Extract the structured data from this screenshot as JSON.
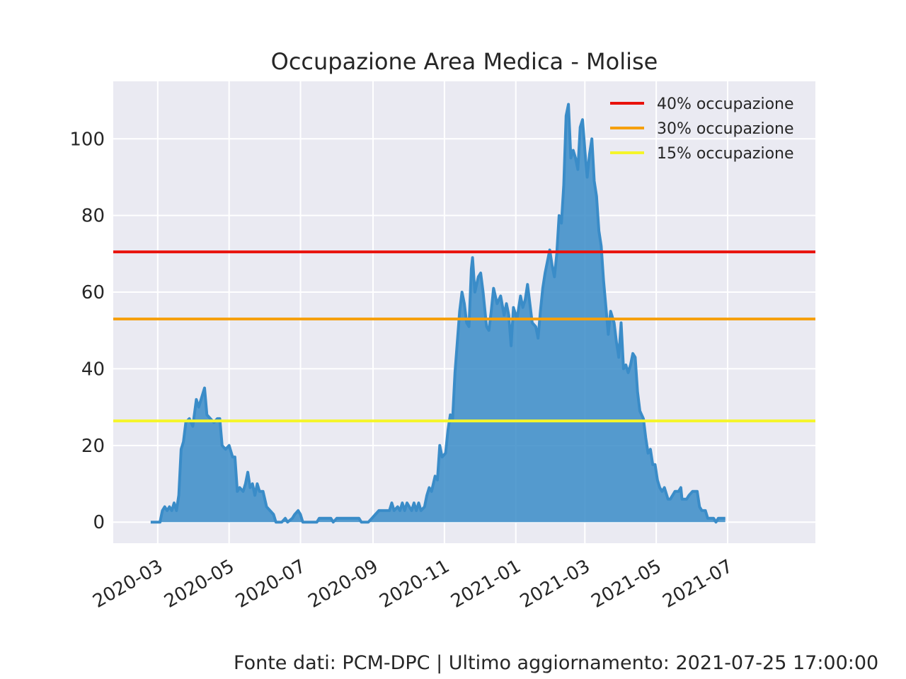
{
  "chart_data": {
    "type": "area",
    "title": "Occupazione Area Medica - Molise",
    "xlabel": "",
    "ylabel": "",
    "x_ticks": [
      "2020-03",
      "2020-05",
      "2020-07",
      "2020-09",
      "2020-11",
      "2021-01",
      "2021-03",
      "2021-05",
      "2021-07"
    ],
    "y_ticks": [
      0,
      20,
      40,
      60,
      80,
      100
    ],
    "xlim": [
      "2020-01-23",
      "2021-09-14"
    ],
    "ylim": [
      -5.5,
      115
    ],
    "grid": true,
    "legend_position": "top-right",
    "series": [
      {
        "color": "#3a8cc8",
        "fill": "#3a8cc8",
        "points": [
          [
            "2020-02-24",
            0
          ],
          [
            "2020-03-03",
            0
          ],
          [
            "2020-03-05",
            3
          ],
          [
            "2020-03-07",
            4
          ],
          [
            "2020-03-09",
            3
          ],
          [
            "2020-03-11",
            4
          ],
          [
            "2020-03-13",
            3
          ],
          [
            "2020-03-15",
            5
          ],
          [
            "2020-03-17",
            3
          ],
          [
            "2020-03-19",
            7
          ],
          [
            "2020-03-21",
            19
          ],
          [
            "2020-03-23",
            21
          ],
          [
            "2020-03-25",
            26
          ],
          [
            "2020-03-28",
            27
          ],
          [
            "2020-03-31",
            25
          ],
          [
            "2020-04-03",
            32
          ],
          [
            "2020-04-05",
            30
          ],
          [
            "2020-04-08",
            33
          ],
          [
            "2020-04-10",
            35
          ],
          [
            "2020-04-12",
            28
          ],
          [
            "2020-04-15",
            27
          ],
          [
            "2020-04-18",
            26
          ],
          [
            "2020-04-21",
            27
          ],
          [
            "2020-04-23",
            27
          ],
          [
            "2020-04-25",
            20
          ],
          [
            "2020-04-28",
            19
          ],
          [
            "2020-05-01",
            20
          ],
          [
            "2020-05-04",
            17
          ],
          [
            "2020-05-06",
            17
          ],
          [
            "2020-05-08",
            8
          ],
          [
            "2020-05-10",
            9
          ],
          [
            "2020-05-13",
            8
          ],
          [
            "2020-05-15",
            10
          ],
          [
            "2020-05-17",
            13
          ],
          [
            "2020-05-19",
            9
          ],
          [
            "2020-05-21",
            10
          ],
          [
            "2020-05-23",
            7
          ],
          [
            "2020-05-25",
            10
          ],
          [
            "2020-05-27",
            8
          ],
          [
            "2020-05-30",
            8
          ],
          [
            "2020-06-02",
            4
          ],
          [
            "2020-06-05",
            3
          ],
          [
            "2020-06-08",
            2
          ],
          [
            "2020-06-10",
            0
          ],
          [
            "2020-06-15",
            0
          ],
          [
            "2020-06-18",
            1
          ],
          [
            "2020-06-20",
            0
          ],
          [
            "2020-06-24",
            1
          ],
          [
            "2020-06-26",
            2
          ],
          [
            "2020-06-29",
            3
          ],
          [
            "2020-07-01",
            2
          ],
          [
            "2020-07-03",
            0
          ],
          [
            "2020-07-15",
            0
          ],
          [
            "2020-07-17",
            1
          ],
          [
            "2020-07-27",
            1
          ],
          [
            "2020-07-29",
            0
          ],
          [
            "2020-08-01",
            1
          ],
          [
            "2020-08-20",
            1
          ],
          [
            "2020-08-22",
            0
          ],
          [
            "2020-08-28",
            0
          ],
          [
            "2020-08-31",
            1
          ],
          [
            "2020-09-03",
            2
          ],
          [
            "2020-09-06",
            3
          ],
          [
            "2020-09-15",
            3
          ],
          [
            "2020-09-17",
            5
          ],
          [
            "2020-09-19",
            3
          ],
          [
            "2020-09-22",
            4
          ],
          [
            "2020-09-24",
            3
          ],
          [
            "2020-09-26",
            5
          ],
          [
            "2020-09-28",
            3
          ],
          [
            "2020-09-30",
            5
          ],
          [
            "2020-10-02",
            4
          ],
          [
            "2020-10-04",
            3
          ],
          [
            "2020-10-06",
            5
          ],
          [
            "2020-10-08",
            3
          ],
          [
            "2020-10-10",
            5
          ],
          [
            "2020-10-12",
            3
          ],
          [
            "2020-10-15",
            4
          ],
          [
            "2020-10-17",
            7
          ],
          [
            "2020-10-19",
            9
          ],
          [
            "2020-10-21",
            8
          ],
          [
            "2020-10-24",
            12
          ],
          [
            "2020-10-26",
            11
          ],
          [
            "2020-10-28",
            20
          ],
          [
            "2020-10-30",
            17
          ],
          [
            "2020-11-02",
            18
          ],
          [
            "2020-11-04",
            24
          ],
          [
            "2020-11-06",
            28
          ],
          [
            "2020-11-08",
            27
          ],
          [
            "2020-11-10",
            39
          ],
          [
            "2020-11-12",
            47
          ],
          [
            "2020-11-14",
            55
          ],
          [
            "2020-11-16",
            60
          ],
          [
            "2020-11-18",
            57
          ],
          [
            "2020-11-20",
            52
          ],
          [
            "2020-11-22",
            51
          ],
          [
            "2020-11-24",
            66
          ],
          [
            "2020-11-25",
            69
          ],
          [
            "2020-11-27",
            60
          ],
          [
            "2020-11-30",
            64
          ],
          [
            "2020-12-02",
            65
          ],
          [
            "2020-12-04",
            60
          ],
          [
            "2020-12-07",
            51
          ],
          [
            "2020-12-09",
            50
          ],
          [
            "2020-12-11",
            55
          ],
          [
            "2020-12-13",
            61
          ],
          [
            "2020-12-16",
            57
          ],
          [
            "2020-12-19",
            59
          ],
          [
            "2020-12-22",
            54
          ],
          [
            "2020-12-24",
            57
          ],
          [
            "2020-12-26",
            54
          ],
          [
            "2020-12-28",
            46
          ],
          [
            "2020-12-30",
            56
          ],
          [
            "2021-01-02",
            53
          ],
          [
            "2021-01-05",
            59
          ],
          [
            "2021-01-07",
            56
          ],
          [
            "2021-01-09",
            58
          ],
          [
            "2021-01-11",
            62
          ],
          [
            "2021-01-13",
            57
          ],
          [
            "2021-01-15",
            52
          ],
          [
            "2021-01-18",
            51
          ],
          [
            "2021-01-20",
            48
          ],
          [
            "2021-01-22",
            55
          ],
          [
            "2021-01-24",
            61
          ],
          [
            "2021-01-26",
            65
          ],
          [
            "2021-01-28",
            68
          ],
          [
            "2021-01-30",
            71
          ],
          [
            "2021-02-01",
            67
          ],
          [
            "2021-02-03",
            64
          ],
          [
            "2021-02-05",
            70
          ],
          [
            "2021-02-07",
            80
          ],
          [
            "2021-02-09",
            78
          ],
          [
            "2021-02-11",
            88
          ],
          [
            "2021-02-13",
            106
          ],
          [
            "2021-02-15",
            109
          ],
          [
            "2021-02-17",
            95
          ],
          [
            "2021-02-19",
            97
          ],
          [
            "2021-02-21",
            95
          ],
          [
            "2021-02-23",
            92
          ],
          [
            "2021-02-25",
            103
          ],
          [
            "2021-02-27",
            105
          ],
          [
            "2021-03-01",
            97
          ],
          [
            "2021-03-03",
            90
          ],
          [
            "2021-03-05",
            96
          ],
          [
            "2021-03-07",
            100
          ],
          [
            "2021-03-09",
            89
          ],
          [
            "2021-03-11",
            85
          ],
          [
            "2021-03-13",
            76
          ],
          [
            "2021-03-15",
            72
          ],
          [
            "2021-03-17",
            63
          ],
          [
            "2021-03-19",
            56
          ],
          [
            "2021-03-21",
            49
          ],
          [
            "2021-03-23",
            55
          ],
          [
            "2021-03-26",
            52
          ],
          [
            "2021-03-28",
            47
          ],
          [
            "2021-03-30",
            43
          ],
          [
            "2021-04-01",
            52
          ],
          [
            "2021-04-03",
            40
          ],
          [
            "2021-04-05",
            41
          ],
          [
            "2021-04-07",
            39
          ],
          [
            "2021-04-09",
            41
          ],
          [
            "2021-04-11",
            44
          ],
          [
            "2021-04-13",
            43
          ],
          [
            "2021-04-15",
            34
          ],
          [
            "2021-04-17",
            29
          ],
          [
            "2021-04-20",
            27
          ],
          [
            "2021-04-22",
            22
          ],
          [
            "2021-04-24",
            18
          ],
          [
            "2021-04-26",
            19
          ],
          [
            "2021-04-28",
            15
          ],
          [
            "2021-04-30",
            15
          ],
          [
            "2021-05-02",
            11
          ],
          [
            "2021-05-04",
            9
          ],
          [
            "2021-05-06",
            8
          ],
          [
            "2021-05-08",
            9
          ],
          [
            "2021-05-11",
            6
          ],
          [
            "2021-05-13",
            6
          ],
          [
            "2021-05-15",
            7
          ],
          [
            "2021-05-17",
            8
          ],
          [
            "2021-05-20",
            8
          ],
          [
            "2021-05-22",
            9
          ],
          [
            "2021-05-23",
            6
          ],
          [
            "2021-05-27",
            6
          ],
          [
            "2021-05-29",
            7
          ],
          [
            "2021-06-01",
            8
          ],
          [
            "2021-06-05",
            8
          ],
          [
            "2021-06-07",
            4
          ],
          [
            "2021-06-09",
            3
          ],
          [
            "2021-06-12",
            3
          ],
          [
            "2021-06-14",
            1
          ],
          [
            "2021-06-19",
            1
          ],
          [
            "2021-06-21",
            0
          ],
          [
            "2021-06-23",
            1
          ],
          [
            "2021-06-29",
            1
          ]
        ]
      }
    ],
    "reference_lines": [
      {
        "label": "40% occupazione",
        "value": 70.5,
        "color": "#e8120c"
      },
      {
        "label": "30% occupazione",
        "value": 53,
        "color": "#f5a00e"
      },
      {
        "label": "15% occupazione",
        "value": 26.4,
        "color": "#f5f52a"
      }
    ],
    "colors": {
      "axes_background": "#eaeaf2",
      "grid": "#ffffff"
    }
  },
  "footer": {
    "text": "Fonte dati: PCM-DPC | Ultimo aggiornamento: 2021-07-25 17:00:00"
  }
}
